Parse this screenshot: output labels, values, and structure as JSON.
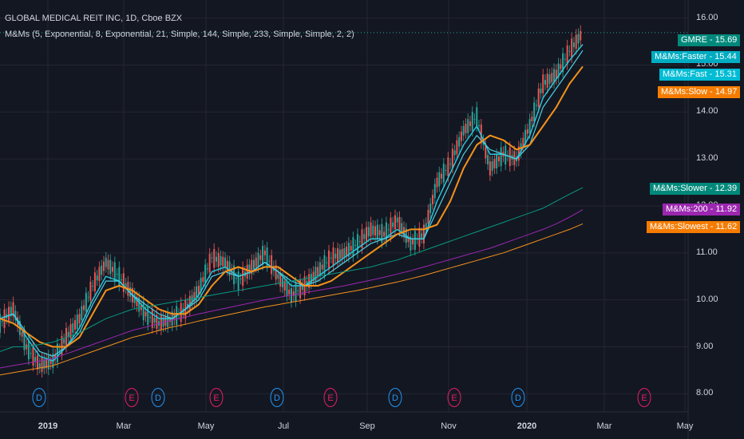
{
  "legend": {
    "line1": "GLOBAL MEDICAL REIT INC, 1D, Cboe BZX",
    "line2": "M&Ms (5, Exponential, 8, Exponential, 21, Simple, 144, Simple, 233, Simple, Simple, 2, 2)"
  },
  "colors": {
    "background": "#131722",
    "grid": "#242733",
    "candle_up": "#26a69a",
    "candle_down": "#ef5350",
    "faster": "#26c6da",
    "slow": "#f5921b",
    "slower": "#089981",
    "ma200": "#9c27b0",
    "slowest": "#f5921b",
    "price_tag": "#00897b"
  },
  "chart_data": {
    "type": "line",
    "x_axis_labels": [
      "2019",
      "Mar",
      "May",
      "Jul",
      "Sep",
      "Nov",
      "2020",
      "Mar",
      "May"
    ],
    "y_axis_labels": [
      "16.00",
      "15.00",
      "14.00",
      "13.00",
      "12.00",
      "11.00",
      "10.00",
      "9.00",
      "8.00"
    ],
    "ylim": [
      7.7,
      16.3
    ],
    "series": [
      {
        "name": "GMRE",
        "last_value": "15.69",
        "values": [
          9.5,
          9.8,
          9.0,
          8.6,
          8.7,
          9.2,
          9.6,
          10.3,
          10.8,
          10.5,
          10.1,
          9.7,
          9.5,
          9.6,
          9.8,
          10.2,
          10.9,
          10.8,
          10.4,
          10.7,
          11.0,
          10.5,
          10.1,
          10.3,
          10.6,
          10.9,
          11.0,
          11.2,
          11.5,
          11.4,
          11.7,
          11.2,
          11.4,
          12.5,
          12.9,
          13.6,
          13.9,
          12.8,
          13.1,
          13.0,
          13.7,
          14.6,
          14.8,
          15.3,
          15.69
        ]
      },
      {
        "name": "M&Ms:Faster",
        "last_value": "15.44",
        "values": [
          9.6,
          9.7,
          9.2,
          8.8,
          8.7,
          9.0,
          9.4,
          10.0,
          10.5,
          10.4,
          10.1,
          9.8,
          9.6,
          9.6,
          9.8,
          10.1,
          10.6,
          10.7,
          10.5,
          10.6,
          10.8,
          10.6,
          10.3,
          10.3,
          10.5,
          10.7,
          10.9,
          11.1,
          11.3,
          11.3,
          11.5,
          11.3,
          11.3,
          12.1,
          12.7,
          13.3,
          13.7,
          13.1,
          13.1,
          13.0,
          13.5,
          14.3,
          14.7,
          15.1,
          15.44
        ]
      },
      {
        "name": "M&Ms:Fast",
        "last_value": "15.31",
        "values": [
          9.6,
          9.7,
          9.3,
          8.9,
          8.8,
          9.0,
          9.3,
          9.9,
          10.4,
          10.4,
          10.1,
          9.9,
          9.7,
          9.6,
          9.8,
          10.0,
          10.5,
          10.6,
          10.5,
          10.6,
          10.8,
          10.6,
          10.4,
          10.3,
          10.4,
          10.6,
          10.8,
          11.0,
          11.2,
          11.3,
          11.4,
          11.3,
          11.3,
          11.9,
          12.5,
          13.1,
          13.5,
          13.2,
          13.1,
          13.0,
          13.3,
          14.1,
          14.5,
          14.9,
          15.31
        ]
      },
      {
        "name": "M&Ms:Slow",
        "last_value": "14.97",
        "values": [
          9.6,
          9.5,
          9.3,
          9.1,
          9.0,
          9.0,
          9.2,
          9.7,
          10.2,
          10.3,
          10.2,
          10.0,
          9.8,
          9.7,
          9.7,
          9.9,
          10.3,
          10.6,
          10.7,
          10.6,
          10.7,
          10.7,
          10.5,
          10.3,
          10.3,
          10.4,
          10.6,
          10.8,
          11.0,
          11.2,
          11.4,
          11.5,
          11.5,
          11.6,
          12.1,
          12.8,
          13.3,
          13.5,
          13.4,
          13.2,
          13.3,
          13.7,
          14.1,
          14.6,
          14.97
        ]
      },
      {
        "name": "M&Ms:Slower",
        "last_value": "12.39",
        "values": [
          8.9,
          9.0,
          9.0,
          9.05,
          9.1,
          9.2,
          9.3,
          9.45,
          9.6,
          9.7,
          9.8,
          9.85,
          9.9,
          9.95,
          10.0,
          10.05,
          10.1,
          10.15,
          10.2,
          10.25,
          10.3,
          10.35,
          10.4,
          10.45,
          10.5,
          10.55,
          10.6,
          10.65,
          10.7,
          10.78,
          10.85,
          10.95,
          11.05,
          11.15,
          11.25,
          11.35,
          11.45,
          11.55,
          11.65,
          11.75,
          11.85,
          11.95,
          12.1,
          12.25,
          12.39
        ]
      },
      {
        "name": "M&Ms:200",
        "last_value": "11.92",
        "values": [
          8.55,
          8.6,
          8.65,
          8.7,
          8.75,
          8.85,
          8.95,
          9.05,
          9.15,
          9.25,
          9.35,
          9.42,
          9.5,
          9.57,
          9.63,
          9.7,
          9.76,
          9.82,
          9.88,
          9.94,
          10.0,
          10.05,
          10.1,
          10.15,
          10.2,
          10.25,
          10.3,
          10.36,
          10.42,
          10.48,
          10.55,
          10.62,
          10.7,
          10.78,
          10.86,
          10.94,
          11.02,
          11.1,
          11.2,
          11.3,
          11.4,
          11.5,
          11.62,
          11.76,
          11.92
        ]
      },
      {
        "name": "M&Ms:Slowest",
        "last_value": "11.62",
        "values": [
          8.4,
          8.45,
          8.5,
          8.55,
          8.6,
          8.7,
          8.8,
          8.9,
          9.0,
          9.1,
          9.2,
          9.27,
          9.35,
          9.42,
          9.48,
          9.55,
          9.61,
          9.67,
          9.73,
          9.79,
          9.85,
          9.9,
          9.95,
          10.0,
          10.05,
          10.1,
          10.15,
          10.2,
          10.26,
          10.32,
          10.38,
          10.45,
          10.52,
          10.6,
          10.68,
          10.76,
          10.84,
          10.92,
          11.0,
          11.1,
          11.2,
          11.3,
          11.4,
          11.5,
          11.62
        ]
      }
    ],
    "price_tags": [
      {
        "label": "GMRE",
        "value": "15.69",
        "y": 15.69,
        "color": "#00897b"
      },
      {
        "label": "M&Ms:Faster",
        "value": "15.44",
        "y": 15.44,
        "color": "#00acc1"
      },
      {
        "label": "M&Ms:Fast",
        "value": "15.31",
        "y": 15.31,
        "color": "#00bcd4"
      },
      {
        "label": "M&Ms:Slow",
        "value": "14.97",
        "y": 14.97,
        "color": "#f57c00"
      },
      {
        "label": "M&Ms:Slower",
        "value": "12.39",
        "y": 12.39,
        "color": "#00897b"
      },
      {
        "label": "M&Ms:200",
        "value": "11.92",
        "y": 11.92,
        "color": "#9c27b0"
      },
      {
        "label": "M&Ms:Slowest",
        "value": "11.62",
        "y": 11.62,
        "color": "#f57c00"
      }
    ],
    "events": [
      {
        "letter": "D",
        "kind": "dividend"
      },
      {
        "letter": "E",
        "kind": "earnings"
      },
      {
        "letter": "D",
        "kind": "dividend"
      },
      {
        "letter": "E",
        "kind": "earnings"
      },
      {
        "letter": "D",
        "kind": "dividend"
      },
      {
        "letter": "E",
        "kind": "earnings"
      },
      {
        "letter": "D",
        "kind": "dividend"
      },
      {
        "letter": "E",
        "kind": "earnings"
      },
      {
        "letter": "D",
        "kind": "dividend"
      },
      {
        "letter": "E",
        "kind": "earnings"
      }
    ]
  }
}
